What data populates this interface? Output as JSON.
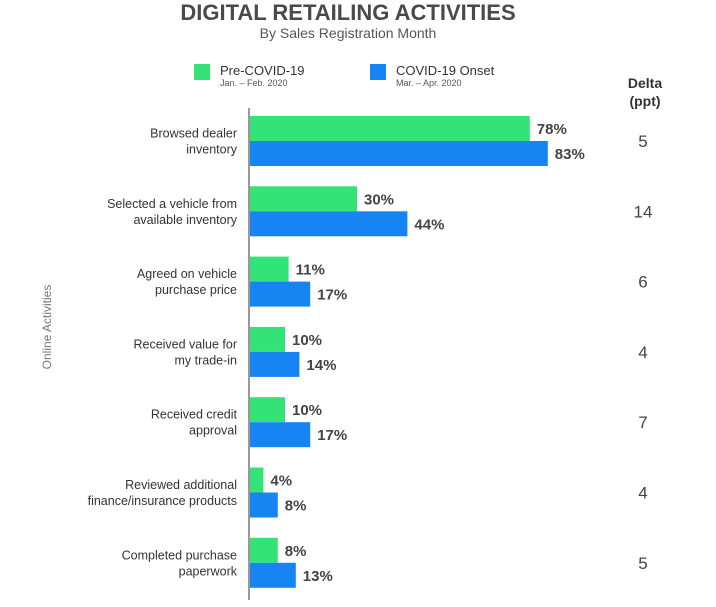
{
  "chart_data": {
    "type": "bar",
    "orientation": "horizontal",
    "title": "DIGITAL RETAILING ACTIVITIES",
    "subtitle": "By Sales Registration Month",
    "ylabel": "Online Activities",
    "xlim": [
      0,
      100
    ],
    "value_suffix": "%",
    "categories": [
      [
        "Browsed dealer",
        "inventory"
      ],
      [
        "Selected a vehicle from",
        "available inventory"
      ],
      [
        "Agreed on vehicle",
        "purchase price"
      ],
      [
        "Received value for",
        "my trade-in"
      ],
      [
        "Received credit",
        "approval"
      ],
      [
        "Reviewed additional",
        "finance/insurance products"
      ],
      [
        "Completed purchase",
        "paperwork"
      ]
    ],
    "series": [
      {
        "name": "Pre-COVID-19",
        "period": "Jan. – Feb. 2020",
        "color": "#33e377",
        "values": [
          78,
          30,
          11,
          10,
          10,
          4,
          8
        ]
      },
      {
        "name": "COVID-19 Onset",
        "period": "Mar. – Apr. 2020",
        "color": "#1684f2",
        "values": [
          83,
          44,
          17,
          14,
          17,
          8,
          13
        ]
      }
    ],
    "delta": {
      "header": [
        "Delta",
        "(ppt)"
      ],
      "values": [
        5,
        14,
        6,
        4,
        7,
        4,
        5
      ]
    },
    "legend_position": "top"
  },
  "colors": {
    "axis": "#999999"
  }
}
